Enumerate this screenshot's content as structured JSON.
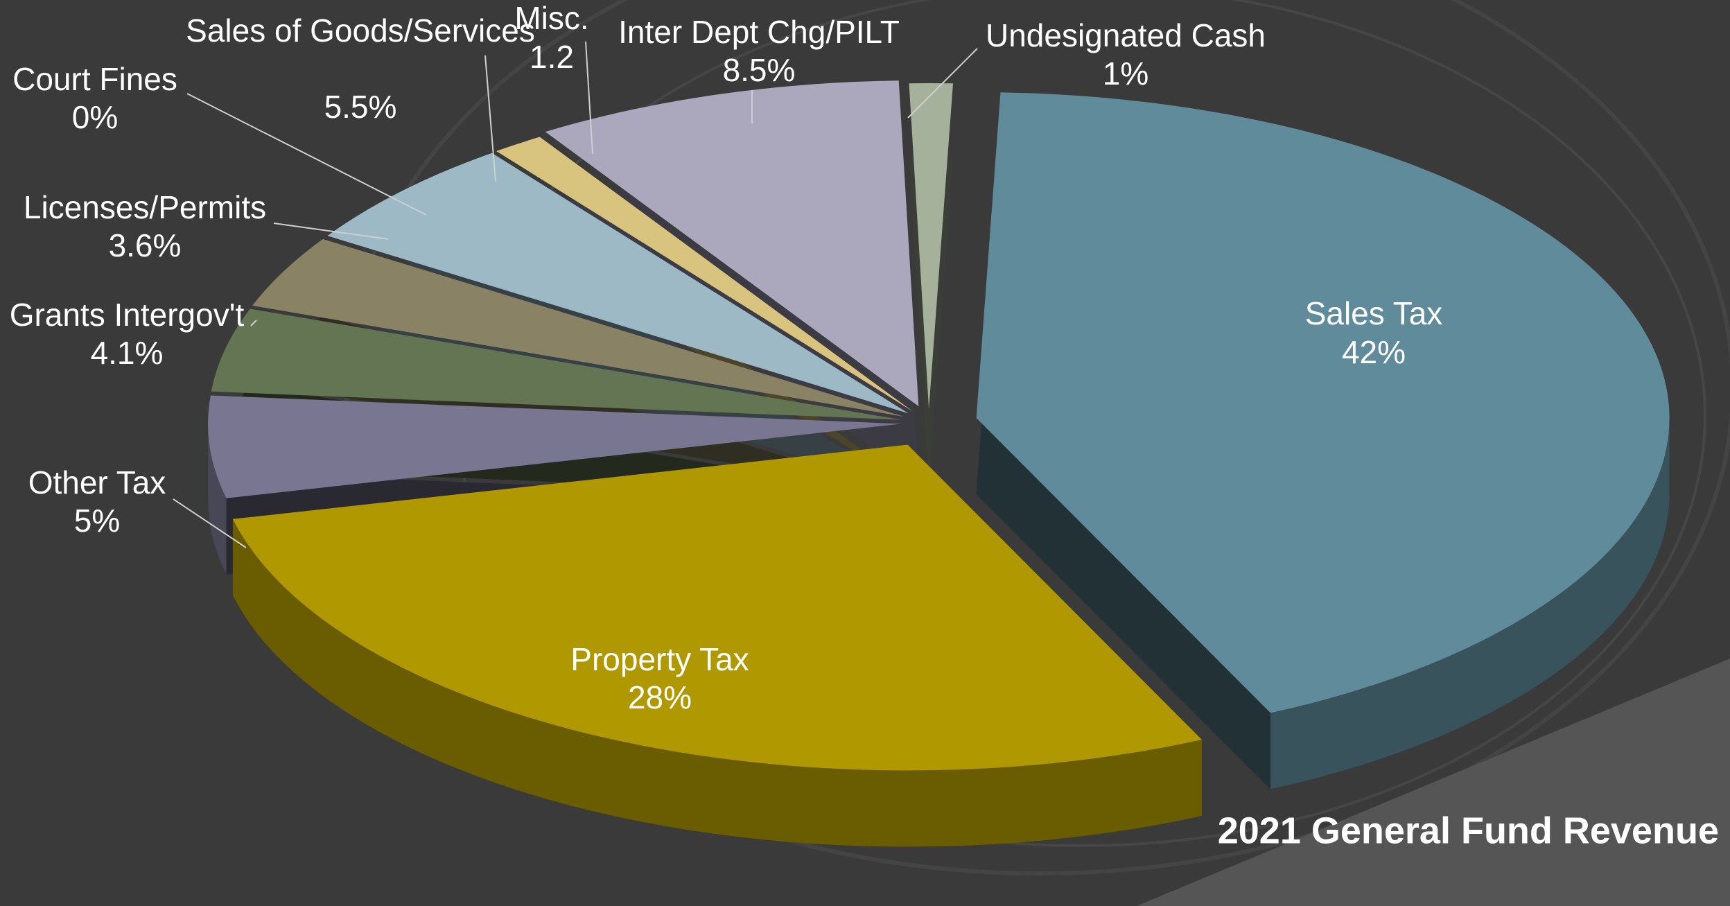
{
  "chart_data": {
    "type": "pie",
    "title": "2021 General Fund Revenue",
    "categories": [
      "Sales Tax",
      "Property Tax",
      "Other Tax",
      "Grants Intergov't",
      "Licenses/Permits",
      "Court Fines",
      "Sales of Goods/Services",
      "Misc.",
      "Inter Dept Chg/PILT",
      "Undesignated Cash"
    ],
    "values": [
      42,
      28,
      5,
      4.1,
      3.6,
      0,
      5.5,
      1.2,
      8.5,
      1
    ],
    "value_labels": [
      "42%",
      "28%",
      "5%",
      "4.1%",
      "3.6%",
      "0%",
      "5.5%",
      "1.2",
      "8.5%",
      "1%"
    ],
    "colors": [
      "#5f8b9a",
      "#b09900",
      "#787690",
      "#637552",
      "#8a8264",
      "#4c6a78",
      "#9cb9c5",
      "#d9c47f",
      "#aba7bd",
      "#a6b19b"
    ]
  }
}
